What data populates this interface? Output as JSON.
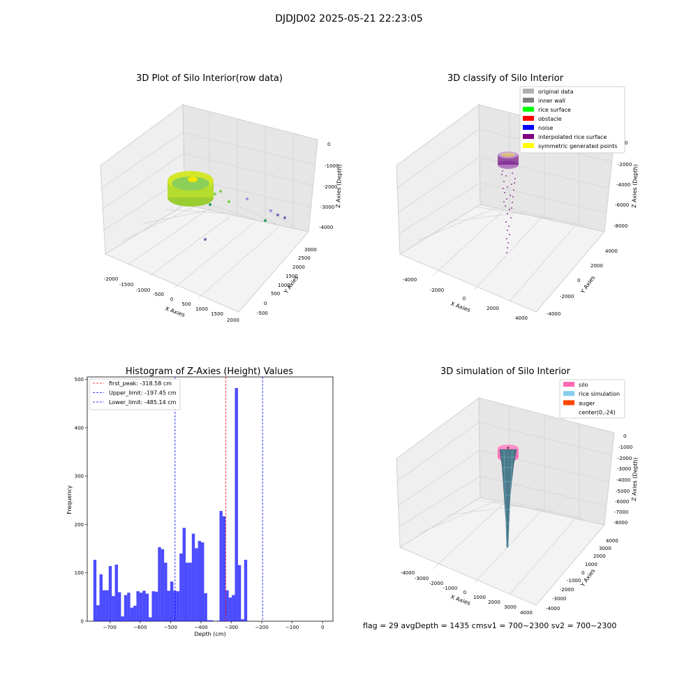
{
  "figure_title": "DJDJD02 2025-05-21 22:23:05",
  "panels": {
    "raw": {
      "title": "3D Plot of Silo Interior(row data)",
      "xlabel": "X Axies",
      "ylabel": "Y Axies",
      "zlabel": "Z Axies (Depth)",
      "xticks": [
        "-2000",
        "-1500",
        "-1000",
        "-500",
        "0",
        "500",
        "1000",
        "1500",
        "2000"
      ],
      "yticks": [
        "-500",
        "0",
        "500",
        "1000",
        "1500",
        "2000",
        "2500",
        "3000"
      ],
      "zticks": [
        "0",
        "-1000",
        "-2000",
        "-3000",
        "-4000"
      ]
    },
    "classify": {
      "title": "3D classify of Silo Interior",
      "xlabel": "X Axies",
      "ylabel": "Y Axies",
      "zlabel": "Z Axies (Depth)",
      "xticks": [
        "-4000",
        "-2000",
        "0",
        "2000",
        "4000"
      ],
      "yticks": [
        "-4000",
        "-2000",
        "0",
        "2000",
        "4000"
      ],
      "zticks": [
        "0",
        "-2000",
        "-4000",
        "-6000",
        "-8000"
      ],
      "legend": [
        {
          "label": "original data",
          "color": "#b0b0b0"
        },
        {
          "label": "inner wall",
          "color": "#808080"
        },
        {
          "label": "rice surface",
          "color": "#00ff00"
        },
        {
          "label": "obstacle",
          "color": "#ff0000"
        },
        {
          "label": "noise",
          "color": "#0000ff"
        },
        {
          "label": "interpolated rice surface",
          "color": "#800080"
        },
        {
          "label": "symmetric generated points",
          "color": "#ffff00"
        }
      ]
    },
    "simulation": {
      "title": "3D simulation of Silo Interior",
      "xlabel": "X Axies",
      "ylabel": "Y Axies",
      "zlabel": "Z Axies (Depth)",
      "xticks": [
        "-4000",
        "-3000",
        "-2000",
        "-1000",
        "0",
        "1000",
        "2000",
        "3000",
        "4000"
      ],
      "yticks": [
        "-4000",
        "-3000",
        "-2000",
        "-1000",
        "0",
        "1000",
        "2000",
        "3000",
        "4000"
      ],
      "zticks": [
        "0",
        "-1000",
        "-2000",
        "-3000",
        "-4000",
        "-5000",
        "-6000",
        "-7000",
        "-8000"
      ],
      "legend": [
        {
          "label": "silo",
          "color": "#ff69b4"
        },
        {
          "label": "rice simulation",
          "color": "#87ceeb"
        },
        {
          "label": "auger",
          "color": "#ff4500"
        },
        {
          "label": "center(0,-24)",
          "color": "#ffffff"
        }
      ]
    }
  },
  "status_text": "flag = 29   avgDepth = 1435 cmsv1 = 700~2300  sv2 = 700~2300",
  "chart_data": {
    "type": "bar",
    "title": "Histogram of Z-Axies (Height) Values",
    "xlabel": "Depth (cm)",
    "ylabel": "Frequency",
    "xlim": [
      -774,
      34
    ],
    "ylim": [
      0,
      505
    ],
    "xticks": [
      -700,
      -600,
      -500,
      -400,
      -300,
      -200,
      -100,
      0
    ],
    "yticks": [
      0,
      100,
      200,
      300,
      400,
      500
    ],
    "bar_color": "#0000ff",
    "bin_start": -754,
    "bin_width": 10.12,
    "values": [
      127,
      33,
      97,
      64,
      64,
      114,
      52,
      117,
      60,
      10,
      54,
      59,
      28,
      32,
      62,
      59,
      63,
      57,
      8,
      62,
      61,
      153,
      149,
      121,
      63,
      82,
      63,
      62,
      140,
      193,
      121,
      121,
      181,
      151,
      166,
      163,
      58,
      2,
      2,
      0,
      1,
      228,
      217,
      64,
      49,
      54,
      482,
      116,
      4,
      127
    ],
    "lines": [
      {
        "label": "first_peak: -318.58 cm",
        "x": -318.58,
        "color": "#ff0000"
      },
      {
        "label": "Upper_limit: -197.45 cm",
        "x": -197.45,
        "color": "#0000ff"
      },
      {
        "label": "Lower_limit: -485.14 cm",
        "x": -485.14,
        "color": "#0000ff"
      }
    ],
    "legend_position": "upper left"
  }
}
